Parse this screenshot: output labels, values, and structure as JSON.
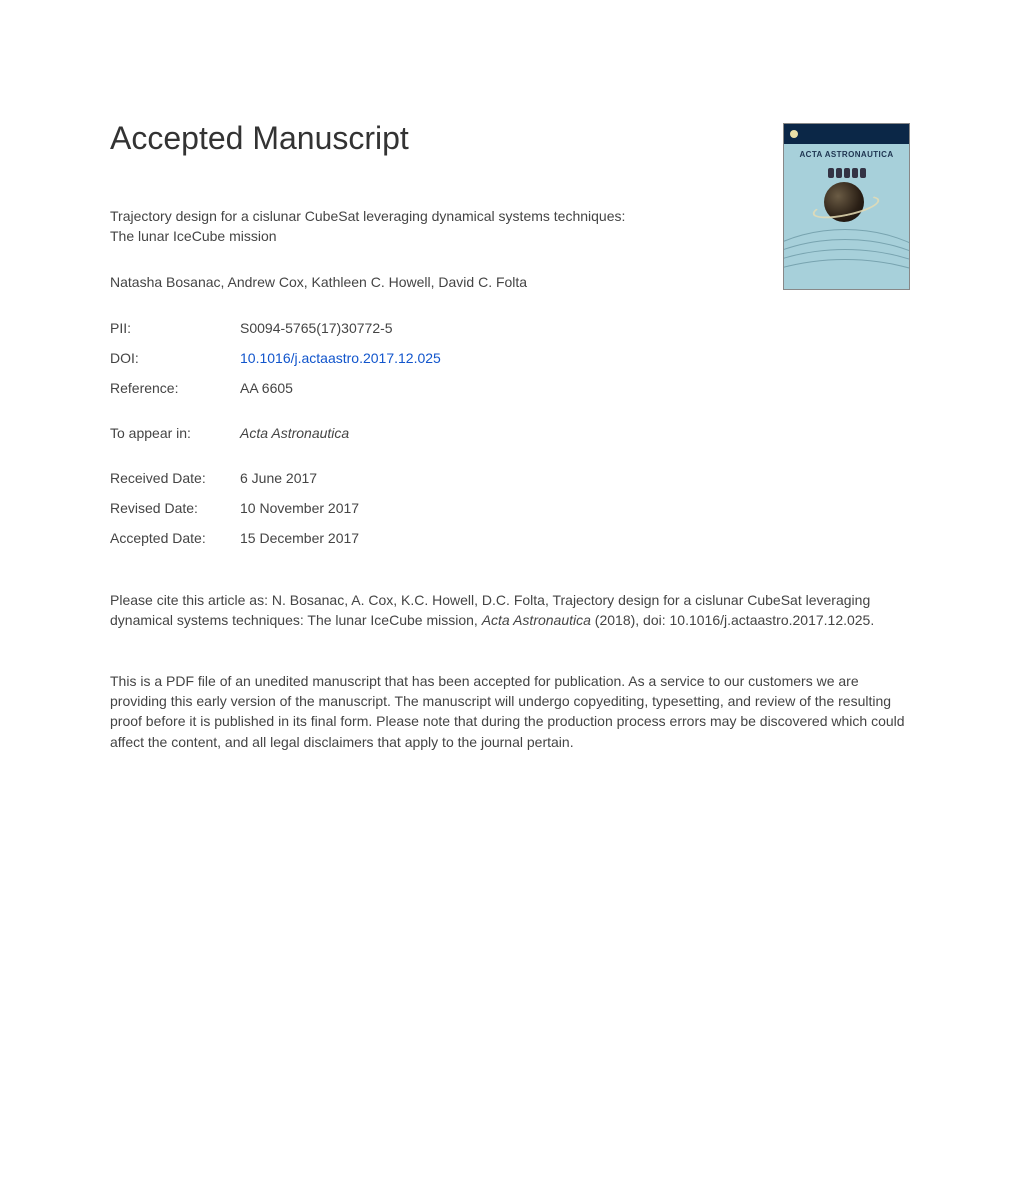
{
  "heading": "Accepted Manuscript",
  "title_line1": "Trajectory design for a cislunar CubeSat leveraging dynamical systems techniques:",
  "title_line2": "The lunar IceCube mission",
  "authors": "Natasha Bosanac, Andrew Cox, Kathleen C. Howell, David C. Folta",
  "rows": {
    "pii_label": "PII:",
    "pii_value": "S0094-5765(17)30772-5",
    "doi_label": "DOI:",
    "doi_value": "10.1016/j.actaastro.2017.12.025",
    "ref_label": "Reference:",
    "ref_value": "AA 6605",
    "appear_label": "To appear in:",
    "appear_value": "Acta Astronautica",
    "recv_label": "Received Date:",
    "recv_value": "6 June 2017",
    "rev_label": "Revised Date:",
    "rev_value": "10 November 2017",
    "acc_label": "Accepted Date:",
    "acc_value": "15 December 2017"
  },
  "citation": {
    "prefix": "Please cite this article as: N. Bosanac, A. Cox, K.C. Howell, D.C. Folta, Trajectory design for a cislunar CubeSat leveraging dynamical systems techniques: The lunar IceCube mission, ",
    "journal": "Acta Astronautica",
    "suffix": " (2018), doi: 10.1016/j.actaastro.2017.12.025."
  },
  "disclaimer": "This is a PDF file of an unedited manuscript that has been accepted for publication. As a service to our customers we are providing this early version of the manuscript. The manuscript will undergo copyediting, typesetting, and review of the resulting proof before it is published in its final form. Please note that during the production process errors may be discovered which could affect the content, and all legal disclaimers that apply to the journal pertain.",
  "cover": {
    "title": "ACTA ASTRONAUTICA",
    "background_color": "#a7d0da",
    "bar_color": "#0b2747",
    "arc_color": "#6d98a5"
  }
}
